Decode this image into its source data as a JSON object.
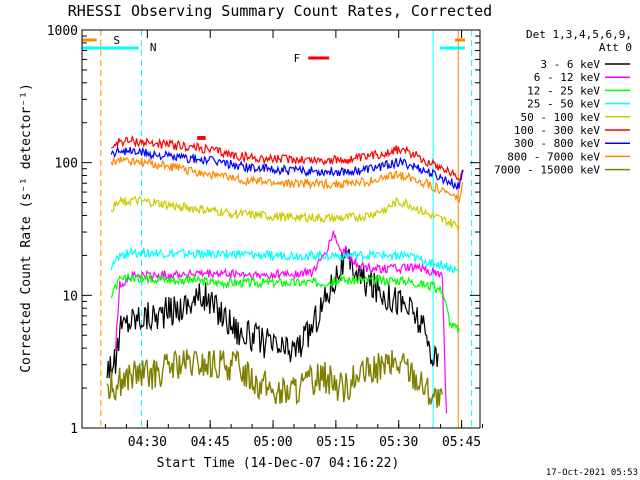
{
  "chart_data": {
    "type": "line",
    "title": "RHESSI Observing Summary Count Rates, Corrected",
    "xlabel": "Start Time (14-Dec-07 04:16:22)",
    "ylabel": "Corrected Count Rate (s⁻¹ detector⁻¹)",
    "x_range_minutes": [
      -2,
      93
    ],
    "x_ticks": [
      {
        "label": "04:30",
        "value": 13.6
      },
      {
        "label": "04:45",
        "value": 28.6
      },
      {
        "label": "05:00",
        "value": 43.6
      },
      {
        "label": "05:15",
        "value": 58.6
      },
      {
        "label": "05:30",
        "value": 73.6
      },
      {
        "label": "05:45",
        "value": 88.6
      }
    ],
    "y_scale": "log",
    "ylim": [
      1,
      1000
    ],
    "y_ticks": [
      {
        "label": "1",
        "value": 1
      },
      {
        "label": "10",
        "value": 10
      },
      {
        "label": "100",
        "value": 100
      },
      {
        "label": "1000",
        "value": 1000
      }
    ],
    "legend": {
      "placement": "right",
      "header_line1": "Det 1,3,4,5,6,9,",
      "header_line2": "Att 0",
      "entries": [
        {
          "label": "3 - 6 keV",
          "color": "#000000"
        },
        {
          "label": "6 - 12 keV",
          "color": "#ff00ff"
        },
        {
          "label": "12 - 25 keV",
          "color": "#00ff00"
        },
        {
          "label": "25 - 50 keV",
          "color": "#00ffff"
        },
        {
          "label": "50 - 100 keV",
          "color": "#cccc00"
        },
        {
          "label": "100 - 300 keV",
          "color": "#ff0000"
        },
        {
          "label": "300 - 800 keV",
          "color": "#0000ff"
        },
        {
          "label": "800 - 7000 keV",
          "color": "#ff8800"
        },
        {
          "label": "7000 - 15000 keV",
          "color": "#808000"
        }
      ]
    },
    "flags": [
      {
        "label": "S",
        "color": "#ff8800"
      },
      {
        "label": "N",
        "color": "#00ffff"
      },
      {
        "label": "F",
        "color": "#ff0000"
      }
    ],
    "series": [
      {
        "label": "3 - 6 keV",
        "color": "#000000",
        "points": [
          [
            4,
            3.0
          ],
          [
            6,
            3.0
          ],
          [
            7,
            5.5
          ],
          [
            9,
            6.5
          ],
          [
            12,
            7
          ],
          [
            15,
            7
          ],
          [
            18,
            7.5
          ],
          [
            21,
            8
          ],
          [
            24,
            9
          ],
          [
            27,
            10
          ],
          [
            29,
            8.5
          ],
          [
            31,
            7.5
          ],
          [
            33,
            6.5
          ],
          [
            35,
            5.5
          ],
          [
            37,
            5
          ],
          [
            39,
            4.8
          ],
          [
            41,
            4.5
          ],
          [
            43,
            4.2
          ],
          [
            45,
            4.0
          ],
          [
            47,
            3.8
          ],
          [
            49,
            4.0
          ],
          [
            51,
            4.5
          ],
          [
            53,
            6
          ],
          [
            55,
            8
          ],
          [
            57,
            11
          ],
          [
            59,
            15
          ],
          [
            61,
            18
          ],
          [
            63,
            16
          ],
          [
            65,
            13
          ],
          [
            67,
            12
          ],
          [
            69,
            11
          ],
          [
            71,
            10
          ],
          [
            73,
            9.5
          ],
          [
            75,
            8.5
          ],
          [
            77,
            7.5
          ],
          [
            79,
            6
          ],
          [
            81,
            4
          ],
          [
            83,
            3.0
          ]
        ]
      },
      {
        "label": "6 - 12 keV",
        "color": "#ff00ff",
        "points": [
          [
            6,
            4
          ],
          [
            7,
            12
          ],
          [
            10,
            14
          ],
          [
            15,
            14
          ],
          [
            20,
            14.5
          ],
          [
            25,
            14.5
          ],
          [
            30,
            14.5
          ],
          [
            35,
            14.5
          ],
          [
            40,
            14
          ],
          [
            45,
            14.5
          ],
          [
            50,
            14.5
          ],
          [
            53,
            15
          ],
          [
            55,
            18
          ],
          [
            57,
            24
          ],
          [
            58,
            30
          ],
          [
            59,
            24
          ],
          [
            60,
            21
          ],
          [
            61,
            22
          ],
          [
            62,
            19
          ],
          [
            64,
            17
          ],
          [
            66,
            16
          ],
          [
            68,
            16
          ],
          [
            70,
            16
          ],
          [
            72,
            16
          ],
          [
            74,
            16
          ],
          [
            76,
            16
          ],
          [
            78,
            16
          ],
          [
            80,
            15.5
          ],
          [
            82,
            15
          ],
          [
            84,
            14
          ],
          [
            85,
            1.2
          ]
        ]
      },
      {
        "label": "12 - 25 keV",
        "color": "#00ff00",
        "points": [
          [
            5,
            10
          ],
          [
            7,
            13
          ],
          [
            10,
            13.5
          ],
          [
            15,
            13.5
          ],
          [
            20,
            13
          ],
          [
            25,
            13
          ],
          [
            30,
            12.5
          ],
          [
            35,
            12.5
          ],
          [
            40,
            12.5
          ],
          [
            45,
            12.5
          ],
          [
            50,
            12.5
          ],
          [
            55,
            12.5
          ],
          [
            60,
            13
          ],
          [
            65,
            13
          ],
          [
            70,
            13
          ],
          [
            75,
            13
          ],
          [
            80,
            12
          ],
          [
            84,
            11
          ],
          [
            86,
            6
          ],
          [
            88,
            5.5
          ]
        ]
      },
      {
        "label": "25 - 50 keV",
        "color": "#00ffff",
        "points": [
          [
            5,
            16
          ],
          [
            7,
            20
          ],
          [
            10,
            21
          ],
          [
            15,
            21
          ],
          [
            20,
            20.5
          ],
          [
            25,
            20.5
          ],
          [
            30,
            20.5
          ],
          [
            35,
            20.5
          ],
          [
            40,
            20
          ],
          [
            45,
            20
          ],
          [
            50,
            20
          ],
          [
            55,
            20
          ],
          [
            60,
            20
          ],
          [
            65,
            20
          ],
          [
            70,
            20
          ],
          [
            75,
            20
          ],
          [
            80,
            18
          ],
          [
            84,
            17
          ],
          [
            86,
            16
          ],
          [
            88,
            15
          ]
        ]
      },
      {
        "label": "50 - 100 keV",
        "color": "#cccc00",
        "points": [
          [
            5,
            45
          ],
          [
            7,
            50
          ],
          [
            10,
            52
          ],
          [
            15,
            50
          ],
          [
            20,
            47
          ],
          [
            25,
            45
          ],
          [
            30,
            43
          ],
          [
            35,
            41
          ],
          [
            40,
            40
          ],
          [
            45,
            39
          ],
          [
            50,
            39
          ],
          [
            55,
            38
          ],
          [
            60,
            38
          ],
          [
            65,
            39
          ],
          [
            70,
            44
          ],
          [
            73,
            50
          ],
          [
            75,
            50
          ],
          [
            78,
            45
          ],
          [
            81,
            40
          ],
          [
            84,
            37
          ],
          [
            86,
            35
          ],
          [
            88,
            33
          ]
        ]
      },
      {
        "label": "100 - 300 keV",
        "color": "#ff0000",
        "points": [
          [
            5,
            130
          ],
          [
            7,
            145
          ],
          [
            10,
            145
          ],
          [
            15,
            140
          ],
          [
            20,
            135
          ],
          [
            25,
            130
          ],
          [
            30,
            122
          ],
          [
            35,
            112
          ],
          [
            40,
            108
          ],
          [
            45,
            106
          ],
          [
            50,
            106
          ],
          [
            55,
            104
          ],
          [
            60,
            104
          ],
          [
            65,
            108
          ],
          [
            70,
            118
          ],
          [
            73,
            125
          ],
          [
            75,
            124
          ],
          [
            78,
            113
          ],
          [
            81,
            100
          ],
          [
            84,
            92
          ],
          [
            86,
            85
          ],
          [
            88,
            75
          ],
          [
            89,
            95
          ]
        ]
      },
      {
        "label": "300 - 800 keV",
        "color": "#0000ff",
        "points": [
          [
            5,
            115
          ],
          [
            7,
            125
          ],
          [
            10,
            122
          ],
          [
            15,
            116
          ],
          [
            20,
            110
          ],
          [
            25,
            106
          ],
          [
            30,
            102
          ],
          [
            35,
            95
          ],
          [
            40,
            90
          ],
          [
            45,
            88
          ],
          [
            50,
            87
          ],
          [
            55,
            86
          ],
          [
            60,
            86
          ],
          [
            65,
            88
          ],
          [
            70,
            95
          ],
          [
            73,
            100
          ],
          [
            75,
            99
          ],
          [
            78,
            92
          ],
          [
            81,
            84
          ],
          [
            84,
            76
          ],
          [
            86,
            71
          ],
          [
            88,
            65
          ],
          [
            89,
            90
          ]
        ]
      },
      {
        "label": "800 - 7000 keV",
        "color": "#ff8800",
        "points": [
          [
            5,
            100
          ],
          [
            7,
            105
          ],
          [
            10,
            103
          ],
          [
            15,
            97
          ],
          [
            20,
            92
          ],
          [
            25,
            86
          ],
          [
            30,
            80
          ],
          [
            35,
            75
          ],
          [
            40,
            72
          ],
          [
            45,
            70
          ],
          [
            50,
            70
          ],
          [
            55,
            69
          ],
          [
            60,
            69
          ],
          [
            65,
            71
          ],
          [
            70,
            76
          ],
          [
            73,
            80
          ],
          [
            75,
            80
          ],
          [
            78,
            74
          ],
          [
            81,
            68
          ],
          [
            84,
            62
          ],
          [
            86,
            58
          ],
          [
            88,
            52
          ],
          [
            89,
            70
          ]
        ]
      },
      {
        "label": "7000 - 15000 keV",
        "color": "#808000",
        "points": [
          [
            4,
            2
          ],
          [
            10,
            2.5
          ],
          [
            15,
            2.5
          ],
          [
            20,
            3
          ],
          [
            25,
            3
          ],
          [
            30,
            3
          ],
          [
            35,
            3
          ],
          [
            40,
            2.2
          ],
          [
            45,
            1.8
          ],
          [
            50,
            2
          ],
          [
            55,
            2.5
          ],
          [
            60,
            2
          ],
          [
            65,
            2.5
          ],
          [
            70,
            3
          ],
          [
            75,
            3
          ],
          [
            80,
            2
          ],
          [
            84,
            1.5
          ]
        ]
      }
    ],
    "footer": "17-Oct-2021 05:53"
  }
}
